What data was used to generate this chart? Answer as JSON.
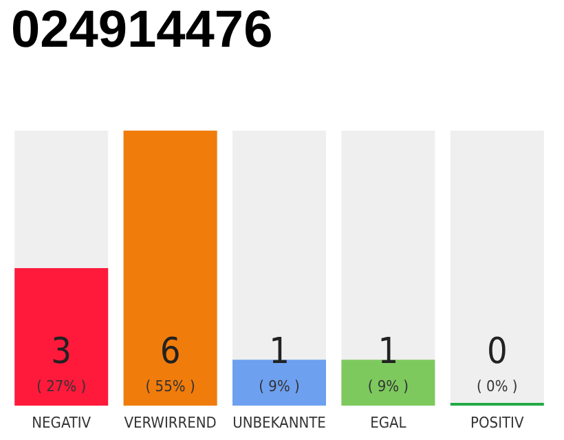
{
  "chart_data": {
    "type": "bar",
    "title": "024914476",
    "categories": [
      "NEGATIV",
      "VERWIRREND",
      "UNBEKANNTE",
      "EGAL",
      "POSITIV"
    ],
    "values": [
      3,
      6,
      1,
      1,
      0
    ],
    "colors": [
      "#ff1a3c",
      "#f07c0c",
      "#6ea0f0",
      "#7dc95e",
      "#22aa44"
    ],
    "value_labels": [
      "3\n( 27% )",
      "6\n( 55% )",
      "1\n( 9% )",
      "1\n( 9% )",
      "0\n( 0% )"
    ]
  }
}
